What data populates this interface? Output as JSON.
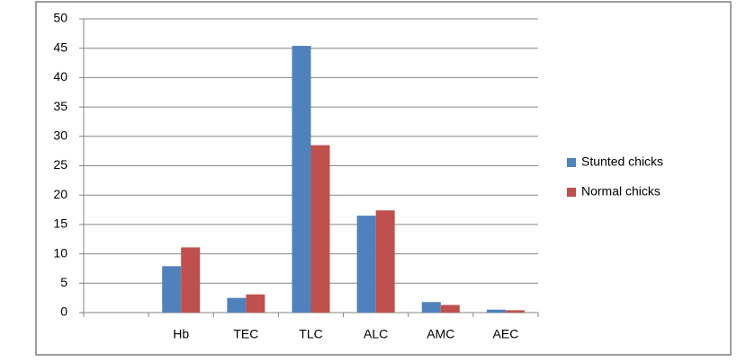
{
  "chart_data": {
    "type": "bar",
    "categories": [
      null,
      "Hb",
      "TEC",
      "TLC",
      "ALC",
      "AMC",
      "AEC"
    ],
    "series": [
      {
        "name": "Stunted chicks",
        "color": "#4f81bd",
        "values": [
          null,
          7.9,
          2.5,
          45.4,
          16.5,
          1.8,
          0.5
        ]
      },
      {
        "name": "Normal chicks",
        "color": "#c0504d",
        "values": [
          null,
          11.1,
          3.1,
          28.5,
          17.4,
          1.3,
          0.4
        ]
      }
    ],
    "ylim": [
      0,
      50
    ],
    "yticks": [
      0,
      5,
      10,
      15,
      20,
      25,
      30,
      35,
      40,
      45,
      50
    ],
    "grid": true,
    "legend": "right"
  }
}
